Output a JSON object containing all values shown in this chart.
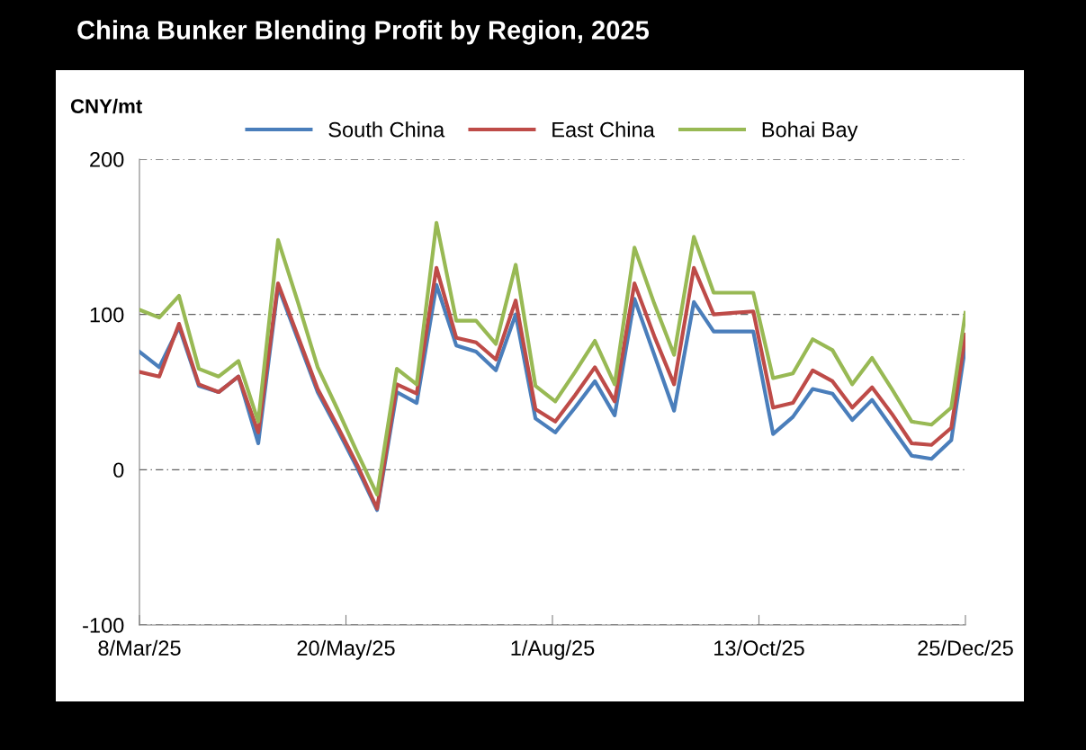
{
  "chart_data": {
    "type": "line",
    "title": "China Bunker Blending Profit by Region, 2025",
    "ylabel": "CNY/mt",
    "x": [
      "2025-03-08",
      "2025-03-15",
      "2025-03-22",
      "2025-03-29",
      "2025-04-05",
      "2025-04-12",
      "2025-04-19",
      "2025-04-26",
      "2025-05-03",
      "2025-05-10",
      "2025-05-17",
      "2025-05-24",
      "2025-05-31",
      "2025-06-07",
      "2025-06-14",
      "2025-06-21",
      "2025-06-28",
      "2025-07-05",
      "2025-07-12",
      "2025-07-19",
      "2025-07-26",
      "2025-08-02",
      "2025-08-09",
      "2025-08-16",
      "2025-08-23",
      "2025-08-30",
      "2025-09-06",
      "2025-09-13",
      "2025-09-20",
      "2025-09-27",
      "2025-10-04",
      "2025-10-11",
      "2025-10-18",
      "2025-10-25",
      "2025-11-01",
      "2025-11-08",
      "2025-11-15",
      "2025-11-22",
      "2025-11-29",
      "2025-12-06",
      "2025-12-13",
      "2025-12-20",
      "2025-12-25"
    ],
    "series": [
      {
        "name": "South China",
        "color": "#4a7ebb",
        "values": [
          76,
          66,
          92,
          54,
          50,
          60,
          17,
          118,
          84,
          50,
          26,
          1,
          -26,
          50,
          43,
          119,
          80,
          76,
          64,
          100,
          33,
          24,
          40,
          57,
          35,
          110,
          74,
          38,
          108,
          89,
          89,
          89,
          23,
          34,
          52,
          49,
          32,
          45,
          27,
          9,
          7,
          19,
          80
        ]
      },
      {
        "name": "East China",
        "color": "#be4b48",
        "values": [
          63,
          60,
          94,
          55,
          50,
          60,
          24,
          120,
          86,
          52,
          28,
          3,
          -25,
          55,
          49,
          130,
          85,
          82,
          71,
          109,
          39,
          31,
          48,
          66,
          44,
          120,
          86,
          55,
          130,
          100,
          101,
          102,
          40,
          43,
          64,
          57,
          40,
          53,
          36,
          17,
          16,
          27,
          87
        ]
      },
      {
        "name": "Bohai Bay",
        "color": "#98b954",
        "values": [
          103,
          98,
          112,
          65,
          60,
          70,
          31,
          148,
          108,
          66,
          39,
          11,
          -16,
          65,
          55,
          159,
          96,
          96,
          81,
          132,
          54,
          44,
          63,
          83,
          55,
          143,
          107,
          74,
          150,
          114,
          114,
          114,
          59,
          62,
          84,
          77,
          55,
          72,
          52,
          31,
          29,
          40,
          101
        ]
      }
    ],
    "ylim": [
      -100,
      200
    ],
    "yticks": [
      -100,
      0,
      100,
      200
    ],
    "xlim": [
      "2025-03-08",
      "2025-12-25"
    ],
    "xticks": [
      {
        "value": "2025-03-08",
        "label": "8/Mar/25"
      },
      {
        "value": "2025-05-20",
        "label": "20/May/25"
      },
      {
        "value": "2025-08-01",
        "label": "1/Aug/25"
      },
      {
        "value": "2025-10-13",
        "label": "13/Oct/25"
      },
      {
        "value": "2025-12-25",
        "label": "25/Dec/25"
      }
    ],
    "grid": "y",
    "legend": "top",
    "marker": "none",
    "line_style": "solid"
  }
}
